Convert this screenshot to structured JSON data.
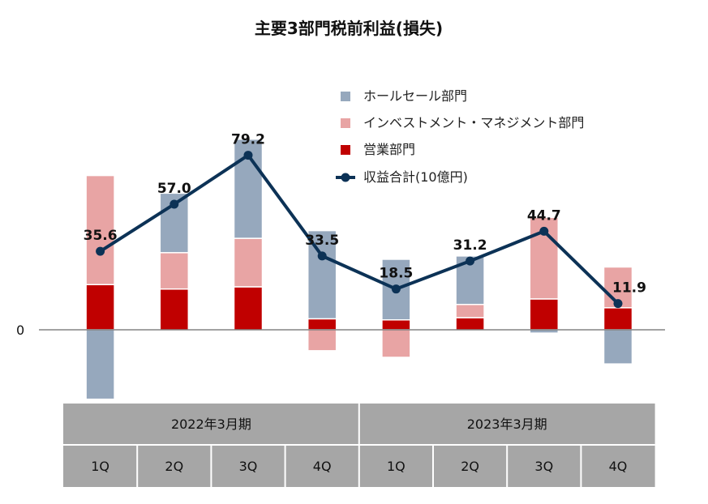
{
  "chart_data": {
    "type": "bar",
    "title": "主要3部門税前利益(損失)",
    "zero_label": "0",
    "periods": [
      "2022年3月期",
      "2023年3月期"
    ],
    "categories": [
      "1Q",
      "2Q",
      "3Q",
      "4Q",
      "1Q",
      "2Q",
      "3Q",
      "4Q"
    ],
    "stacked": true,
    "series": [
      {
        "name": "ホールセール部門",
        "color": "#96a8bd",
        "values": [
          -31.5,
          27.0,
          45.0,
          40.0,
          27.5,
          22.0,
          -1.5,
          -15.5
        ]
      },
      {
        "name": "インベストメント・マネジメント部門",
        "color": "#e8a4a4",
        "values": [
          49.5,
          16.5,
          22.0,
          -9.5,
          -12.5,
          6.0,
          37.0,
          18.5
        ]
      },
      {
        "name": "営業部門",
        "color": "#c00000",
        "values": [
          20.5,
          18.5,
          19.5,
          5.0,
          4.5,
          5.5,
          14.0,
          10.0
        ]
      }
    ],
    "line": {
      "name": "収益合計(10億円)",
      "color": "#0c3256",
      "values": [
        35.6,
        57.0,
        79.2,
        33.5,
        18.5,
        31.2,
        44.7,
        11.9
      ]
    },
    "data_labels": [
      "35.6",
      "57.0",
      "79.2",
      "33.5",
      "18.5",
      "31.2",
      "44.7",
      "11.9"
    ],
    "ylim": [
      -35,
      95
    ],
    "legend_position": "top-right",
    "grid": false
  }
}
